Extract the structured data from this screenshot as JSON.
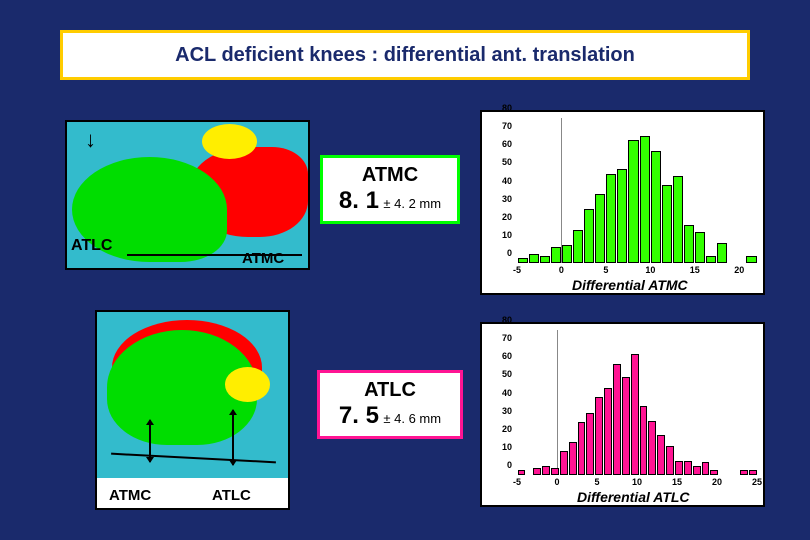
{
  "title": "ACL deficient knees : differential ant. translation",
  "diagram1": {
    "label_left": "ATLC",
    "label_right": "ATMC"
  },
  "diagram2": {
    "label_left": "ATMC",
    "label_right": "ATLC"
  },
  "stat_atmc": {
    "label": "ATMC",
    "value": "8. 1",
    "sd": "± 4. 2 mm",
    "border_color": "#00ff00"
  },
  "stat_atlc": {
    "label": "ATLC",
    "value": "7. 5",
    "sd": "± 4. 6 mm",
    "border_color": "#ff1493"
  },
  "hist_atmc": {
    "type": "histogram",
    "bar_color": "#33ff00",
    "background_color": "#ffffff",
    "ylim": [
      0,
      80
    ],
    "ytick_step": 10,
    "xlim": [
      -5,
      22
    ],
    "xticks": [
      -5,
      0,
      5,
      10,
      15,
      20
    ],
    "bins": [
      -2,
      -1,
      0,
      1,
      2,
      3,
      4,
      5,
      6,
      7,
      8,
      9,
      10,
      11,
      12,
      13,
      14,
      15,
      16,
      17,
      18,
      19
    ],
    "values": [
      3,
      5,
      4,
      9,
      10,
      18,
      30,
      38,
      49,
      52,
      68,
      70,
      62,
      43,
      48,
      21,
      17,
      4,
      11,
      0,
      0,
      4
    ],
    "ref_line_x": 0,
    "xlabel": "Differential ATMC",
    "label_fontsize": 14
  },
  "hist_atlc": {
    "type": "histogram",
    "bar_color": "#ff1493",
    "background_color": "#ffffff",
    "ylim": [
      0,
      80
    ],
    "ytick_step": 10,
    "xlim": [
      -5,
      25
    ],
    "xticks": [
      -5,
      0,
      5,
      10,
      15,
      20,
      25
    ],
    "bins": [
      -4,
      -3,
      -2,
      -1,
      0,
      1,
      2,
      3,
      4,
      5,
      6,
      7,
      8,
      9,
      10,
      11,
      12,
      13,
      14,
      15,
      16,
      17,
      18,
      19,
      20,
      21,
      22,
      23
    ],
    "values": [
      3,
      0,
      4,
      5,
      4,
      13,
      18,
      29,
      34,
      43,
      48,
      61,
      54,
      67,
      38,
      30,
      22,
      16,
      8,
      8,
      5,
      7,
      3,
      0,
      0,
      0,
      3,
      3
    ],
    "ref_line_x": 0,
    "xlabel": "Differential ATLC",
    "label_fontsize": 14
  },
  "colors": {
    "page_bg": "#1a2a6c",
    "title_border": "#ffcc00",
    "anat_green": "#00dd00",
    "anat_red": "#ff0000",
    "anat_yellow": "#ffee00",
    "anat_bg": "#33bbcc"
  }
}
